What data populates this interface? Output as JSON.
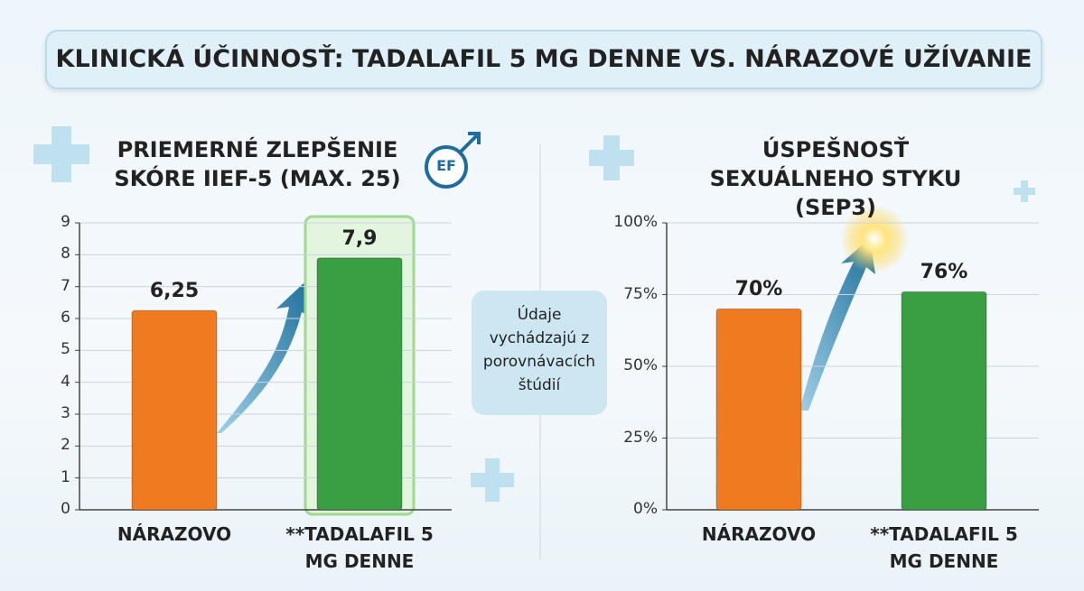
{
  "title": "KLINICKÁ ÚČINNOSŤ: TADALAFIL 5 MG DENNE VS. NÁRAZOVÉ UŽÍVANIE",
  "note": "Údaje vychádzajú z porovnávacích štúdií",
  "icon_label": "EF",
  "chart_data": [
    {
      "type": "bar",
      "title": "PRIEMERNÉ ZLEPŠENIE SKÓRE IIEF-5 (MAX. 25)",
      "categories": [
        "NÁRAZOVO",
        "**TADALAFIL 5 MG DENNE"
      ],
      "values": [
        6.25,
        7.9
      ],
      "value_labels": [
        "6,25",
        "7,9"
      ],
      "colors": [
        "#f07a1f",
        "#3a9e42"
      ],
      "ylim": [
        0,
        9
      ],
      "yticks": [
        0,
        1,
        2,
        3,
        4,
        5,
        6,
        7,
        8,
        9
      ],
      "grid": true
    },
    {
      "type": "bar",
      "title": "ÚSPEŠNOSŤ SEXUÁLNEHO STYKU (SEP3)",
      "categories": [
        "NÁRAZOVO",
        "**TADALAFIL 5 MG DENNE"
      ],
      "values": [
        70,
        76
      ],
      "value_labels": [
        "70%",
        "76%"
      ],
      "colors": [
        "#f07a1f",
        "#3a9e42"
      ],
      "ylim": [
        0,
        100
      ],
      "yticks": [
        {
          "value": 0,
          "label": "0%"
        },
        {
          "value": 25,
          "label": "25%"
        },
        {
          "value": 50,
          "label": "50%"
        },
        {
          "value": 75,
          "label": "75%"
        },
        {
          "value": 100,
          "label": "100%"
        }
      ],
      "grid": true
    }
  ]
}
